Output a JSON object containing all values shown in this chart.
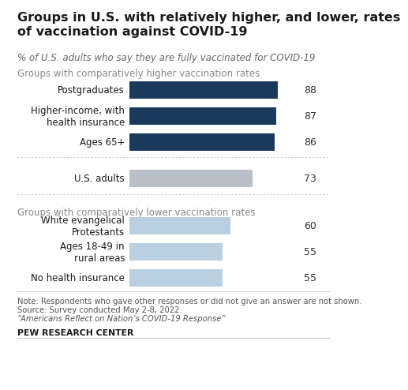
{
  "title": "Groups in U.S. with relatively higher, and lower, rates\nof vaccination against COVID-19",
  "subtitle": "% of U.S. adults who say they are fully vaccinated for COVID-19",
  "higher_section_label": "Groups with comparatively higher vaccination rates",
  "lower_section_label": "Groups with comparatively lower vaccination rates",
  "higher_bars": [
    {
      "label": "Postgraduates",
      "value": 88
    },
    {
      "label": "Higher-income, with\nhealth insurance",
      "value": 87
    },
    {
      "label": "Ages 65+",
      "value": 86
    }
  ],
  "middle_bar": {
    "label": "U.S. adults",
    "value": 73
  },
  "lower_bars": [
    {
      "label": "White evangelical\nProtestants",
      "value": 60
    },
    {
      "label": "Ages 18-49 in\nrural areas",
      "value": 55
    },
    {
      "label": "No health insurance",
      "value": 55
    }
  ],
  "higher_color": "#1a3a5c",
  "middle_color": "#b8bfc8",
  "lower_color": "#bad0e0",
  "background_color": "#ffffff",
  "title_fontsize": 11.5,
  "subtitle_fontsize": 8.5,
  "section_label_fontsize": 8.5,
  "bar_label_fontsize": 8.5,
  "value_fontsize": 9.0,
  "note_fontsize": 7.2,
  "footer_fontsize": 7.8,
  "note_line1": "Note: Respondents who gave other responses or did not give an answer are not shown.",
  "note_line2": "Source: Survey conducted May 2-8, 2022.",
  "note_line3": "“Americans Reflect on Nation’s COVID-19 Response”",
  "footer": "PEW RESEARCH CENTER"
}
